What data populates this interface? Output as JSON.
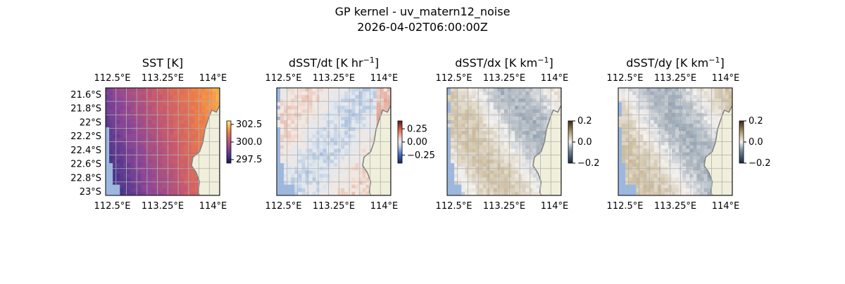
{
  "figure": {
    "title_line1": "GP kernel - uv_matern12_noise",
    "title_line2": "2026-04-02T06:00:00Z"
  },
  "chart_data": [
    {
      "type": "heatmap",
      "title": "SST [K]",
      "title_unit_sup": "",
      "xlim": [
        112.4,
        114.1
      ],
      "ylim": [
        -23.05,
        -21.5
      ],
      "x_ticks": [
        112.5,
        113.25,
        114.0
      ],
      "x_tick_labels": [
        "112.5°E",
        "113.25°E",
        "114°E"
      ],
      "y_ticks": [
        -21.6,
        -21.8,
        -22.0,
        -22.2,
        -22.4,
        -22.6,
        -22.8,
        -23.0
      ],
      "y_tick_labels": [
        "21.6°S",
        "21.8°S",
        "22°S",
        "22.2°S",
        "22.4°S",
        "22.6°S",
        "22.8°S",
        "23°S"
      ],
      "show_y_labels": true,
      "grid": true,
      "colormap": "thermal",
      "colorbar": {
        "range": [
          297.0,
          303.0
        ],
        "ticks": [
          302.5,
          300.0,
          297.5
        ],
        "tick_labels": [
          "302.5",
          "300.0",
          "297.5"
        ]
      }
    },
    {
      "type": "heatmap",
      "title": "dSST/dt [K hr",
      "title_unit_sup": "−1",
      "title_suffix": "]",
      "xlim": [
        112.4,
        114.1
      ],
      "ylim": [
        -23.05,
        -21.5
      ],
      "x_ticks": [
        112.5,
        113.25,
        114.0
      ],
      "x_tick_labels": [
        "112.5°E",
        "113.25°E",
        "114°E"
      ],
      "show_y_labels": false,
      "grid": true,
      "colormap": "balance",
      "colorbar": {
        "range": [
          -0.4,
          0.4
        ],
        "ticks": [
          0.25,
          0.0,
          -0.25
        ],
        "tick_labels": [
          "0.25",
          "0.00",
          "−0.25"
        ]
      }
    },
    {
      "type": "heatmap",
      "title": "dSST/dx [K km",
      "title_unit_sup": "−1",
      "title_suffix": "]",
      "xlim": [
        112.4,
        114.1
      ],
      "ylim": [
        -23.05,
        -21.5
      ],
      "x_ticks": [
        112.5,
        113.25,
        114.0
      ],
      "x_tick_labels": [
        "112.5°E",
        "113.25°E",
        "114°E"
      ],
      "show_y_labels": false,
      "grid": true,
      "colormap": "diff",
      "colorbar": {
        "range": [
          -0.2,
          0.2
        ],
        "ticks": [
          0.2,
          0.0,
          -0.2
        ],
        "tick_labels": [
          "0.2",
          "0.0",
          "−0.2"
        ]
      }
    },
    {
      "type": "heatmap",
      "title": "dSST/dy [K km",
      "title_unit_sup": "−1",
      "title_suffix": "]",
      "xlim": [
        112.4,
        114.1
      ],
      "ylim": [
        -23.05,
        -21.5
      ],
      "x_ticks": [
        112.5,
        113.25,
        114.0
      ],
      "x_tick_labels": [
        "112.5°E",
        "113.25°E",
        "114°E"
      ],
      "show_y_labels": false,
      "grid": true,
      "colormap": "diff",
      "colorbar": {
        "range": [
          -0.2,
          0.2
        ],
        "ticks": [
          0.2,
          0.0,
          -0.2
        ],
        "tick_labels": [
          "0.2",
          "0.0",
          "−0.2"
        ]
      }
    }
  ],
  "colors": {
    "land": "#efefdb",
    "coast": "#808080",
    "missing": "#9cb8e0",
    "grid": "#b0b0b0"
  }
}
